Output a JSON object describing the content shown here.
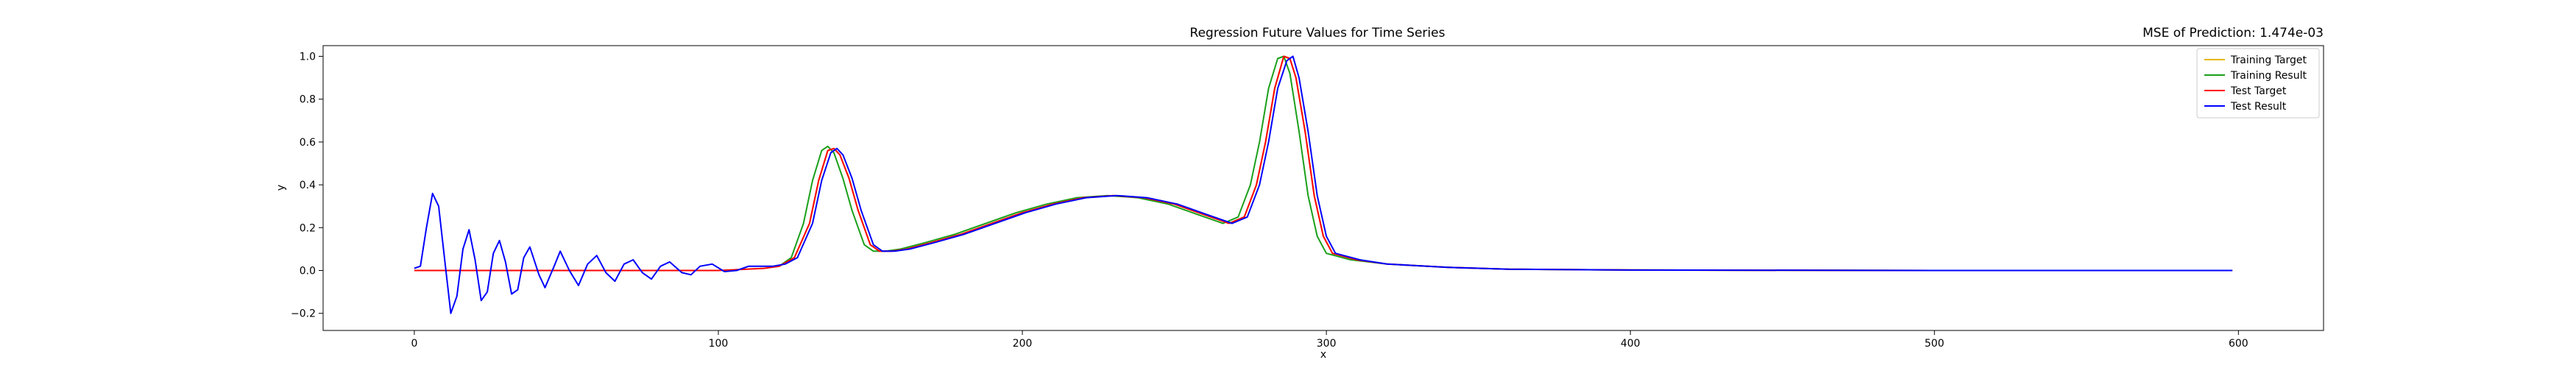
{
  "chart_data": {
    "type": "line",
    "title": "Regression Future Values for Time Series",
    "subtitle": "MSE of Prediction: 1.474e-03",
    "xlabel": "x",
    "ylabel": "y",
    "xlim": [
      -30,
      628
    ],
    "ylim": [
      -0.28,
      1.05
    ],
    "xticks": [
      0,
      100,
      200,
      300,
      400,
      500,
      600
    ],
    "yticks": [
      -0.2,
      0.0,
      0.2,
      0.4,
      0.6,
      0.8,
      1.0
    ],
    "ytick_labels": [
      "−0.2",
      "0.0",
      "0.2",
      "0.4",
      "0.6",
      "0.8",
      "1.0"
    ],
    "grid": false,
    "legend_position": "top-right",
    "series": [
      {
        "name": "Training Target",
        "color": "#e6b800",
        "points": [
          [
            120,
            0.02
          ],
          [
            125,
            0.06
          ],
          [
            130,
            0.22
          ],
          [
            133,
            0.42
          ],
          [
            136,
            0.56
          ],
          [
            138,
            0.57
          ],
          [
            140,
            0.54
          ],
          [
            143,
            0.43
          ],
          [
            146,
            0.28
          ],
          [
            150,
            0.12
          ],
          [
            153,
            0.09
          ],
          [
            157,
            0.09
          ],
          [
            162,
            0.1
          ],
          [
            170,
            0.13
          ],
          [
            180,
            0.17
          ],
          [
            190,
            0.22
          ],
          [
            200,
            0.27
          ],
          [
            210,
            0.31
          ],
          [
            220,
            0.34
          ],
          [
            230,
            0.35
          ],
          [
            240,
            0.34
          ],
          [
            250,
            0.31
          ],
          [
            260,
            0.26
          ],
          [
            268,
            0.22
          ],
          [
            273,
            0.25
          ],
          [
            277,
            0.4
          ],
          [
            280,
            0.6
          ],
          [
            283,
            0.85
          ],
          [
            286,
            1.0
          ],
          [
            288,
            0.99
          ],
          [
            290,
            0.9
          ],
          [
            293,
            0.65
          ],
          [
            296,
            0.35
          ],
          [
            299,
            0.16
          ],
          [
            302,
            0.08
          ],
          [
            310,
            0.05
          ],
          [
            320,
            0.03
          ],
          [
            340,
            0.015
          ],
          [
            360,
            0.006
          ],
          [
            400,
            0.002
          ],
          [
            500,
            0.0
          ],
          [
            598,
            0.0
          ]
        ]
      },
      {
        "name": "Training Result",
        "color": "#1aa01a",
        "points": [
          [
            120,
            0.02
          ],
          [
            124,
            0.06
          ],
          [
            128,
            0.22
          ],
          [
            131,
            0.42
          ],
          [
            134,
            0.56
          ],
          [
            136,
            0.58
          ],
          [
            138,
            0.55
          ],
          [
            141,
            0.43
          ],
          [
            144,
            0.28
          ],
          [
            148,
            0.12
          ],
          [
            151,
            0.09
          ],
          [
            155,
            0.09
          ],
          [
            160,
            0.1
          ],
          [
            168,
            0.13
          ],
          [
            178,
            0.17
          ],
          [
            188,
            0.22
          ],
          [
            198,
            0.27
          ],
          [
            208,
            0.31
          ],
          [
            218,
            0.34
          ],
          [
            228,
            0.35
          ],
          [
            238,
            0.34
          ],
          [
            248,
            0.31
          ],
          [
            258,
            0.26
          ],
          [
            266,
            0.22
          ],
          [
            271,
            0.25
          ],
          [
            275,
            0.4
          ],
          [
            278,
            0.6
          ],
          [
            281,
            0.85
          ],
          [
            284,
            0.99
          ],
          [
            286,
            1.0
          ],
          [
            288,
            0.92
          ],
          [
            291,
            0.65
          ],
          [
            294,
            0.35
          ],
          [
            297,
            0.16
          ],
          [
            300,
            0.08
          ],
          [
            308,
            0.05
          ],
          [
            320,
            0.03
          ],
          [
            340,
            0.015
          ],
          [
            360,
            0.006
          ],
          [
            400,
            0.002
          ],
          [
            500,
            0.0
          ],
          [
            598,
            0.0
          ]
        ]
      },
      {
        "name": "Test Target",
        "color": "#ff0000",
        "points": [
          [
            0,
            0.0
          ],
          [
            50,
            0.0
          ],
          [
            100,
            0.0
          ],
          [
            115,
            0.01
          ],
          [
            120,
            0.02
          ],
          [
            125,
            0.06
          ],
          [
            130,
            0.22
          ],
          [
            133,
            0.42
          ],
          [
            136,
            0.56
          ],
          [
            138,
            0.57
          ],
          [
            140,
            0.54
          ],
          [
            143,
            0.43
          ],
          [
            146,
            0.28
          ],
          [
            150,
            0.12
          ],
          [
            153,
            0.09
          ],
          [
            157,
            0.09
          ],
          [
            162,
            0.1
          ],
          [
            170,
            0.13
          ],
          [
            180,
            0.17
          ],
          [
            190,
            0.22
          ],
          [
            200,
            0.27
          ],
          [
            210,
            0.31
          ],
          [
            220,
            0.34
          ],
          [
            230,
            0.35
          ],
          [
            240,
            0.34
          ],
          [
            250,
            0.31
          ],
          [
            260,
            0.26
          ],
          [
            268,
            0.22
          ],
          [
            273,
            0.25
          ],
          [
            277,
            0.4
          ],
          [
            280,
            0.6
          ],
          [
            283,
            0.85
          ],
          [
            286,
            1.0
          ],
          [
            288,
            0.99
          ],
          [
            290,
            0.9
          ],
          [
            293,
            0.65
          ],
          [
            296,
            0.35
          ],
          [
            299,
            0.16
          ],
          [
            302,
            0.08
          ],
          [
            310,
            0.05
          ],
          [
            320,
            0.03
          ],
          [
            340,
            0.015
          ],
          [
            360,
            0.006
          ],
          [
            400,
            0.002
          ],
          [
            500,
            0.0
          ],
          [
            598,
            0.0
          ]
        ]
      },
      {
        "name": "Test Result",
        "color": "#0000ff",
        "points": [
          [
            0,
            0.01
          ],
          [
            2,
            0.02
          ],
          [
            4,
            0.2
          ],
          [
            6,
            0.36
          ],
          [
            8,
            0.3
          ],
          [
            10,
            0.05
          ],
          [
            12,
            -0.2
          ],
          [
            14,
            -0.12
          ],
          [
            16,
            0.1
          ],
          [
            18,
            0.19
          ],
          [
            20,
            0.05
          ],
          [
            22,
            -0.14
          ],
          [
            24,
            -0.1
          ],
          [
            26,
            0.08
          ],
          [
            28,
            0.14
          ],
          [
            30,
            0.04
          ],
          [
            32,
            -0.11
          ],
          [
            34,
            -0.09
          ],
          [
            36,
            0.06
          ],
          [
            38,
            0.11
          ],
          [
            41,
            -0.02
          ],
          [
            43,
            -0.08
          ],
          [
            46,
            0.02
          ],
          [
            48,
            0.09
          ],
          [
            51,
            0.0
          ],
          [
            54,
            -0.07
          ],
          [
            57,
            0.03
          ],
          [
            60,
            0.07
          ],
          [
            63,
            -0.01
          ],
          [
            66,
            -0.05
          ],
          [
            69,
            0.03
          ],
          [
            72,
            0.05
          ],
          [
            75,
            -0.01
          ],
          [
            78,
            -0.04
          ],
          [
            81,
            0.02
          ],
          [
            84,
            0.04
          ],
          [
            88,
            -0.01
          ],
          [
            91,
            -0.02
          ],
          [
            94,
            0.02
          ],
          [
            98,
            0.03
          ],
          [
            102,
            -0.005
          ],
          [
            106,
            0.0
          ],
          [
            110,
            0.02
          ],
          [
            113,
            0.02
          ],
          [
            118,
            0.02
          ],
          [
            122,
            0.03
          ],
          [
            126,
            0.06
          ],
          [
            131,
            0.22
          ],
          [
            134,
            0.42
          ],
          [
            137,
            0.55
          ],
          [
            139,
            0.57
          ],
          [
            141,
            0.54
          ],
          [
            144,
            0.43
          ],
          [
            147,
            0.28
          ],
          [
            151,
            0.12
          ],
          [
            154,
            0.09
          ],
          [
            158,
            0.09
          ],
          [
            163,
            0.1
          ],
          [
            171,
            0.13
          ],
          [
            181,
            0.17
          ],
          [
            191,
            0.22
          ],
          [
            201,
            0.27
          ],
          [
            211,
            0.31
          ],
          [
            221,
            0.34
          ],
          [
            231,
            0.35
          ],
          [
            241,
            0.34
          ],
          [
            251,
            0.31
          ],
          [
            261,
            0.26
          ],
          [
            269,
            0.22
          ],
          [
            274,
            0.25
          ],
          [
            278,
            0.4
          ],
          [
            281,
            0.6
          ],
          [
            284,
            0.85
          ],
          [
            287,
            0.98
          ],
          [
            289,
            1.0
          ],
          [
            291,
            0.9
          ],
          [
            294,
            0.65
          ],
          [
            297,
            0.35
          ],
          [
            300,
            0.16
          ],
          [
            303,
            0.08
          ],
          [
            311,
            0.05
          ],
          [
            320,
            0.03
          ],
          [
            340,
            0.015
          ],
          [
            360,
            0.006
          ],
          [
            400,
            0.002
          ],
          [
            500,
            0.0
          ],
          [
            598,
            0.0
          ]
        ]
      }
    ]
  }
}
